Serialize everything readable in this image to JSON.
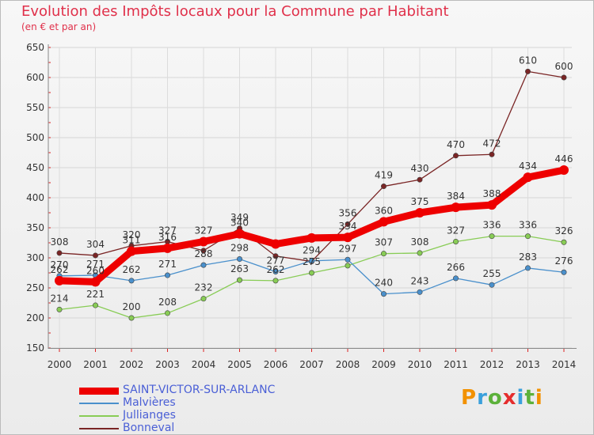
{
  "title": "Evolution des Impôts locaux pour la Commune par Habitant",
  "subtitle": "(en € et par an)",
  "logo": {
    "letters": [
      "P",
      "r",
      "o",
      "x",
      "i",
      "t",
      "i"
    ],
    "colors": [
      "#f29100",
      "#3aa0dc",
      "#5cb13a",
      "#e52d2d",
      "#3aa0dc",
      "#5cb13a",
      "#f29100"
    ]
  },
  "chart_data": {
    "type": "line",
    "title": "Evolution des Impôts locaux pour la Commune par Habitant",
    "subtitle": "(en € et par an)",
    "xlabel": "",
    "ylabel": "",
    "x": [
      "2000",
      "2001",
      "2002",
      "2003",
      "2004",
      "2005",
      "2006",
      "2007",
      "2008",
      "2009",
      "2010",
      "2011",
      "2012",
      "2013",
      "2014"
    ],
    "ylim": [
      150,
      650
    ],
    "yticks": [
      "150",
      "200",
      "250",
      "300",
      "350",
      "400",
      "450",
      "500",
      "550",
      "600",
      "650"
    ],
    "grid": true,
    "legend_position": "bottom-left",
    "series": [
      {
        "name": "SAINT-VICTOR-SUR-ARLANC",
        "color": "#ee0000",
        "values": [
          262,
          260,
          311,
          316,
          327,
          340,
          323,
          333,
          334,
          360,
          375,
          384,
          388,
          434,
          446
        ],
        "labels": [
          "262",
          "260",
          "311",
          "316",
          "327",
          "340",
          "",
          "",
          "334",
          "360",
          "375",
          "384",
          "388",
          "434",
          "446"
        ]
      },
      {
        "name": "Malvières",
        "color": "#4a90cc",
        "values": [
          270,
          271,
          262,
          271,
          288,
          298,
          277,
          295,
          297,
          240,
          243,
          266,
          255,
          283,
          276
        ],
        "labels": [
          "270",
          "271",
          "262",
          "271",
          "288",
          "298",
          "277",
          "",
          "297",
          "240",
          "243",
          "266",
          "255",
          "283",
          "276"
        ]
      },
      {
        "name": "Jullianges",
        "color": "#88cc55",
        "values": [
          214,
          221,
          200,
          208,
          232,
          263,
          262,
          275,
          287,
          307,
          308,
          327,
          336,
          336,
          326
        ],
        "labels": [
          "214",
          "221",
          "200",
          "208",
          "232",
          "263",
          "262",
          "275",
          "",
          "307",
          "308",
          "327",
          "336",
          "336",
          "326"
        ]
      },
      {
        "name": "Bonneval",
        "color": "#7a2525",
        "values": [
          308,
          304,
          320,
          327,
          312,
          349,
          303,
          294,
          356,
          419,
          430,
          470,
          472,
          610,
          600
        ],
        "labels": [
          "308",
          "304",
          "320",
          "327",
          "",
          "349",
          "",
          "294",
          "356",
          "419",
          "430",
          "470",
          "472",
          "610",
          "600"
        ]
      }
    ]
  }
}
